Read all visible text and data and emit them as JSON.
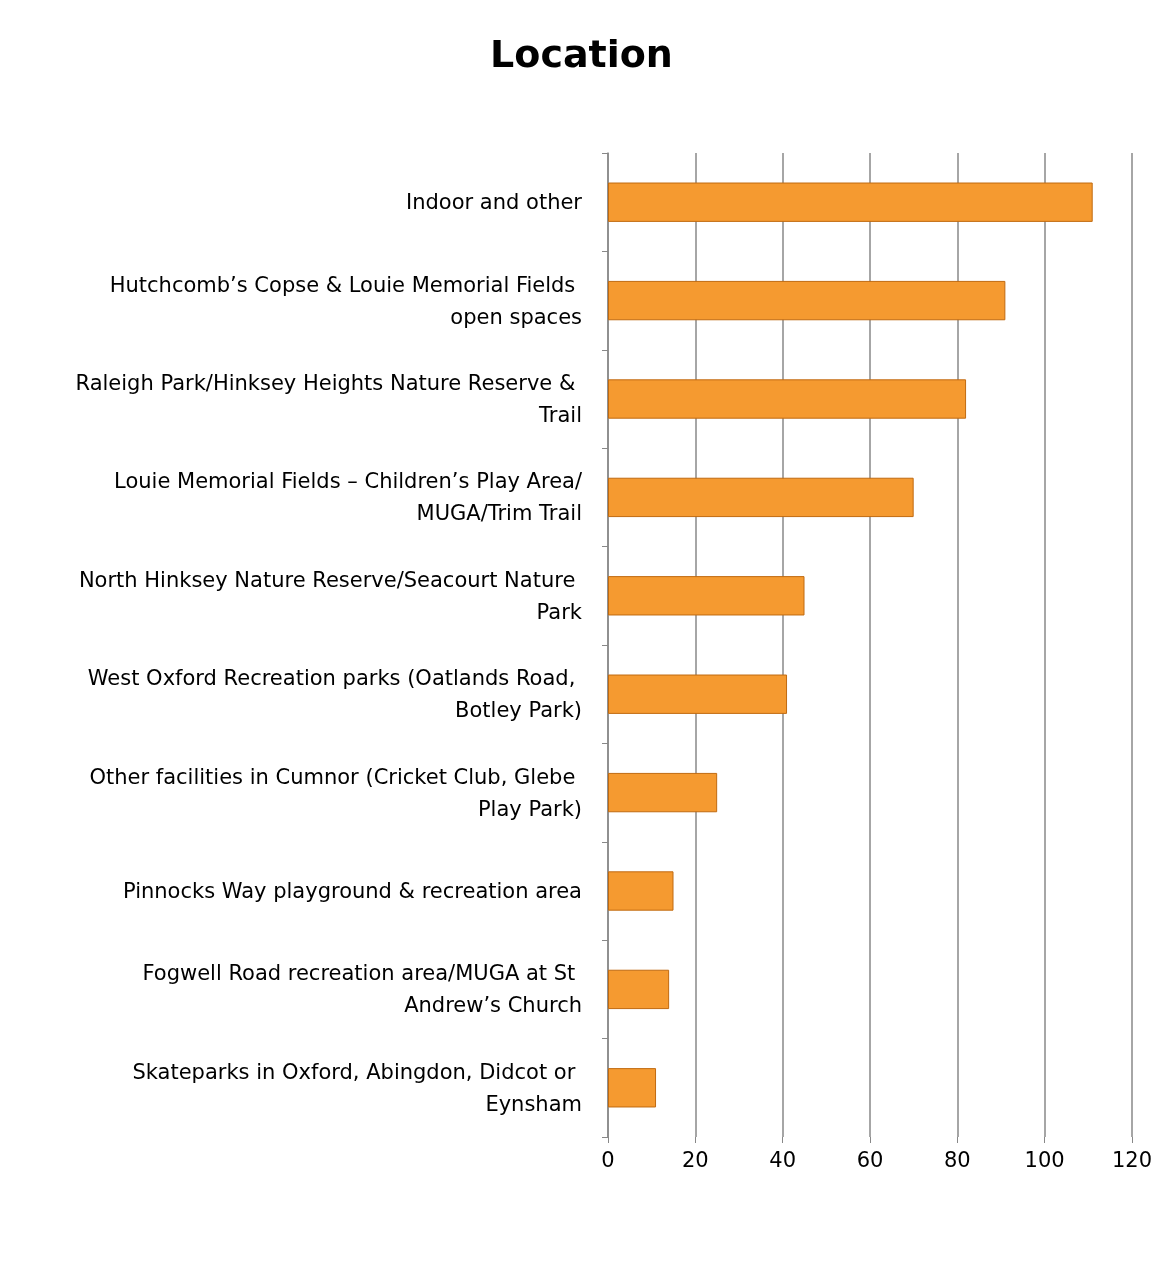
{
  "chart_data": {
    "type": "bar",
    "orientation": "horizontal",
    "title": "Location",
    "categories": [
      "Indoor and other",
      "Hutchcomb’s Copse & Louie Memorial Fields open spaces",
      "Raleigh Park/Hinksey Heights Nature Reserve & Trail",
      "Louie Memorial Fields – Children’s Play Area/MUGA/Trim Trail",
      "North Hinksey Nature Reserve/Seacourt Nature Park",
      "West Oxford Recreation parks (Oatlands Road, Botley Park)",
      "Other facilities in Cumnor (Cricket Club, Glebe Play Park)",
      "Pinnocks Way playground & recreation area",
      "Fogwell Road recreation area/MUGA at St Andrew’s Church",
      "Skateparks in Oxford, Abingdon, Didcot or Eynsham"
    ],
    "values": [
      111,
      91,
      82,
      70,
      45,
      41,
      25,
      15,
      14,
      11
    ],
    "color": "#f59a30",
    "xlim": [
      0,
      120
    ],
    "xticks": [
      0,
      20,
      40,
      60,
      80,
      100,
      120
    ],
    "grid": "x"
  }
}
